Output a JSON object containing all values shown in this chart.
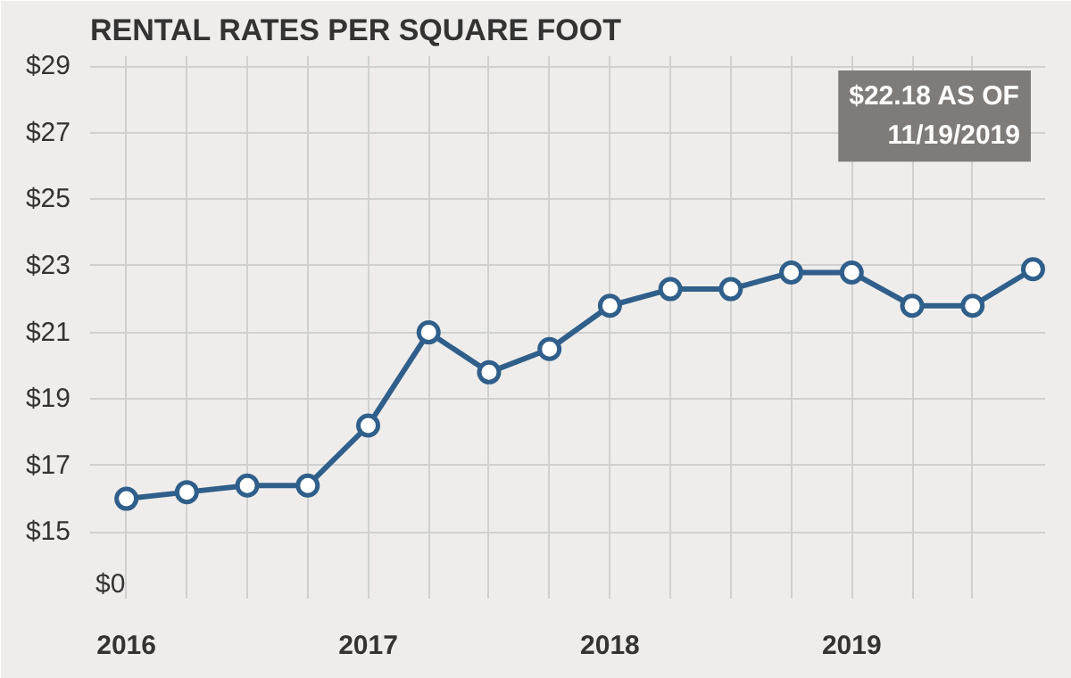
{
  "chart_data": {
    "type": "line",
    "title": "RENTAL RATES PER SQUARE FOOT",
    "x": [
      2016.0,
      2016.25,
      2016.5,
      2016.75,
      2017.0,
      2017.25,
      2017.5,
      2017.75,
      2018.0,
      2018.25,
      2018.5,
      2018.75,
      2019.0,
      2019.25,
      2019.5,
      2019.75
    ],
    "series": [
      {
        "color": "#2f5f8a",
        "values": [
          16.0,
          16.2,
          16.4,
          16.4,
          18.2,
          21.0,
          19.8,
          20.5,
          21.8,
          22.3,
          22.3,
          22.8,
          22.8,
          21.8,
          21.8,
          22.9
        ]
      }
    ],
    "xlim": [
      2015.85,
      2019.8
    ],
    "xticks": [
      {
        "value": 2016,
        "label": "2016"
      },
      {
        "value": 2016.25,
        "label": null
      },
      {
        "value": 2016.5,
        "label": null
      },
      {
        "value": 2016.75,
        "label": null
      },
      {
        "value": 2017,
        "label": "2017"
      },
      {
        "value": 2017.25,
        "label": null
      },
      {
        "value": 2017.5,
        "label": null
      },
      {
        "value": 2017.75,
        "label": null
      },
      {
        "value": 2018,
        "label": "2018"
      },
      {
        "value": 2018.25,
        "label": null
      },
      {
        "value": 2018.5,
        "label": null
      },
      {
        "value": 2018.75,
        "label": null
      },
      {
        "value": 2019,
        "label": "2019"
      },
      {
        "value": 2019.25,
        "label": null
      },
      {
        "value": 2019.5,
        "label": null
      }
    ],
    "ylim": [
      13,
      29.3
    ],
    "yticks": [
      {
        "value": 15,
        "label": "$15"
      },
      {
        "value": 17,
        "label": "$17"
      },
      {
        "value": 19,
        "label": "$19"
      },
      {
        "value": 21,
        "label": "$21"
      },
      {
        "value": 23,
        "label": "$23"
      },
      {
        "value": 25,
        "label": "$25"
      },
      {
        "value": 27,
        "label": "$27"
      },
      {
        "value": 29,
        "label": "$29"
      }
    ],
    "annotations": [
      "$22.18 AS OF\n11/19/2019",
      "$0"
    ],
    "grid": true,
    "marker": "circle",
    "line_style": "solid"
  }
}
